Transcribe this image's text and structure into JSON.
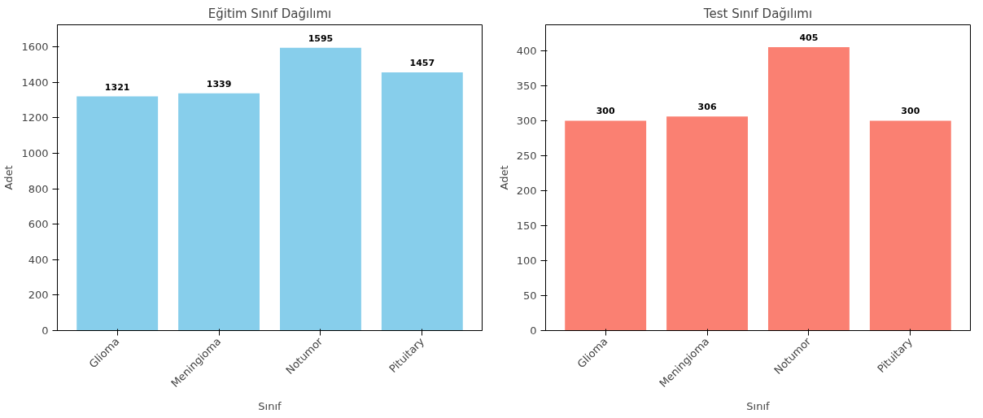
{
  "chart_data": [
    {
      "type": "bar",
      "title": "Eğitim Sınıf Dağılımı",
      "xlabel": "Sınıf",
      "ylabel": "Adet",
      "categories": [
        "Glioma",
        "Meningioma",
        "Notumor",
        "Pituitary"
      ],
      "series": [
        {
          "color": "#87ceeb",
          "values": [
            1321,
            1339,
            1595,
            1457
          ]
        }
      ],
      "ylim": [
        0,
        1725
      ],
      "yticks": [
        0,
        200,
        400,
        600,
        800,
        1000,
        1200,
        1400,
        1600
      ],
      "data_labels": true
    },
    {
      "type": "bar",
      "title": "Test Sınıf Dağılımı",
      "xlabel": "Sınıf",
      "ylabel": "Adet",
      "categories": [
        "Glioma",
        "Meningioma",
        "Notumor",
        "Pituitary"
      ],
      "series": [
        {
          "color": "#fa8072",
          "values": [
            300,
            306,
            405,
            300
          ]
        }
      ],
      "ylim": [
        0,
        437
      ],
      "yticks": [
        0,
        50,
        100,
        150,
        200,
        250,
        300,
        350,
        400
      ],
      "data_labels": true
    }
  ]
}
